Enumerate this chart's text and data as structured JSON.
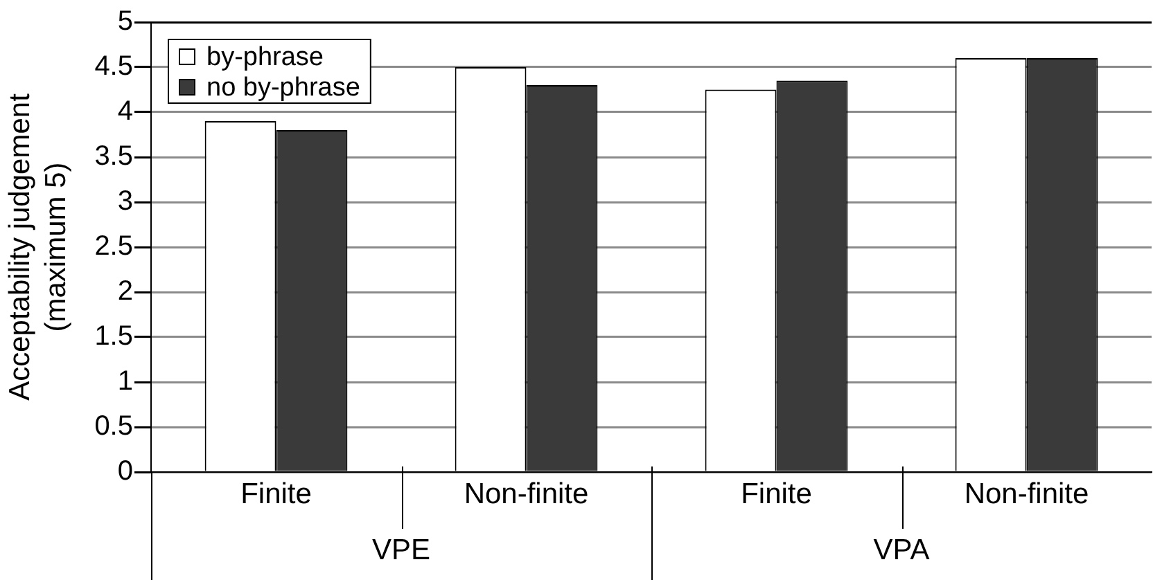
{
  "chart_data": {
    "type": "bar",
    "ylabel": "Acceptability judgement\n(maximum 5)",
    "categories": [
      "Finite",
      "Non-finite",
      "Finite",
      "Non-finite"
    ],
    "series": [
      {
        "name": "by-phrase",
        "color": "#ffffff",
        "values": [
          3.9,
          4.5,
          4.25,
          4.6
        ]
      },
      {
        "name": "no by-phrase",
        "color": "#3a3a3a",
        "values": [
          3.8,
          4.3,
          4.35,
          4.6
        ]
      }
    ],
    "ylim": [
      0,
      5
    ],
    "yticks": [
      0,
      0.5,
      1,
      1.5,
      2,
      2.5,
      3,
      3.5,
      4,
      4.5,
      5
    ],
    "grid": "y",
    "legend": "top left",
    "annotations": [
      "VPE",
      "VPA"
    ]
  }
}
